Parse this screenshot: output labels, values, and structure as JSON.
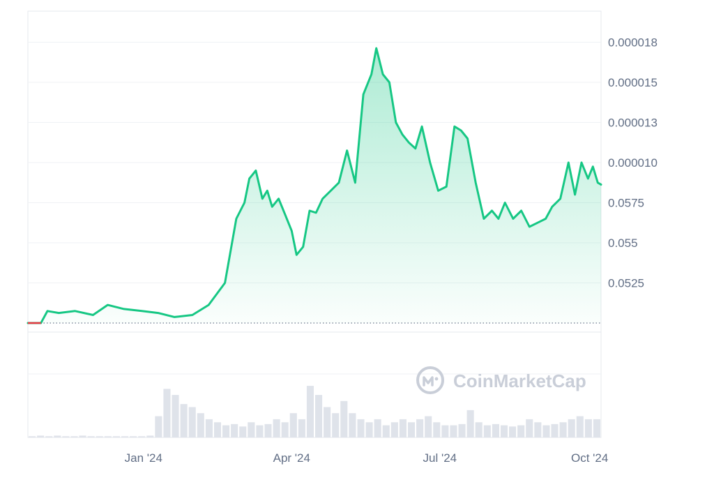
{
  "watermark": {
    "text": "CoinMarketCap",
    "icon": "coinmarketcap-logo-icon"
  },
  "colors": {
    "line": "#16c784",
    "fill_top": "#16c784",
    "grid": "#eff2f5",
    "axis_text": "#616e85",
    "baseline_dots": "#808a9d",
    "start_segment": "#ea3943",
    "volume": "#dfe3ea"
  },
  "chart_data": {
    "type": "area",
    "title": "",
    "xlabel": "",
    "ylabel": "",
    "x_ticks": [
      "Jan '24",
      "Apr '24",
      "Jul '24",
      "Oct '24"
    ],
    "y_ticks": [
      "0.0525",
      "0.055",
      "0.0575",
      "0.000010",
      "0.000013",
      "0.000015",
      "0.000018"
    ],
    "grid": true,
    "baseline_dotted": true,
    "series": [
      {
        "type": "area",
        "axis_note": "values in units of the tick index scale (0 = baseline, 1..7 = labeled gridlines bottom to top)",
        "x_range": [
          "2023-10-22",
          "2024-10-08"
        ],
        "x": [
          "2023-10-22",
          "2023-10-30",
          "2023-11-03",
          "2023-11-10",
          "2023-11-20",
          "2023-12-01",
          "2023-12-10",
          "2023-12-20",
          "2023-12-31",
          "2024-01-10",
          "2024-01-20",
          "2024-01-31",
          "2024-02-10",
          "2024-02-20",
          "2024-02-27",
          "2024-03-03",
          "2024-03-06",
          "2024-03-10",
          "2024-03-14",
          "2024-03-17",
          "2024-03-20",
          "2024-03-24",
          "2024-03-28",
          "2024-04-01",
          "2024-04-04",
          "2024-04-08",
          "2024-04-12",
          "2024-04-16",
          "2024-04-20",
          "2024-04-25",
          "2024-04-30",
          "2024-05-05",
          "2024-05-10",
          "2024-05-15",
          "2024-05-20",
          "2024-05-23",
          "2024-05-27",
          "2024-05-31",
          "2024-06-04",
          "2024-06-08",
          "2024-06-12",
          "2024-06-16",
          "2024-06-20",
          "2024-06-25",
          "2024-06-30",
          "2024-07-05",
          "2024-07-10",
          "2024-07-14",
          "2024-07-18",
          "2024-07-23",
          "2024-07-28",
          "2024-08-02",
          "2024-08-06",
          "2024-08-10",
          "2024-08-15",
          "2024-08-20",
          "2024-08-25",
          "2024-08-30",
          "2024-09-04",
          "2024-09-08",
          "2024-09-13",
          "2024-09-18",
          "2024-09-22",
          "2024-09-26",
          "2024-09-30",
          "2024-10-03",
          "2024-10-06",
          "2024-10-08"
        ],
        "values": [
          0.0,
          0.0,
          0.3,
          0.25,
          0.3,
          0.2,
          0.45,
          0.35,
          0.3,
          0.25,
          0.15,
          0.2,
          0.45,
          1.0,
          2.6,
          3.0,
          3.6,
          3.8,
          3.1,
          3.3,
          2.9,
          3.1,
          2.7,
          2.3,
          1.7,
          1.9,
          2.8,
          2.75,
          3.1,
          3.3,
          3.5,
          4.3,
          3.5,
          5.7,
          6.2,
          6.85,
          6.2,
          6.0,
          5.0,
          4.7,
          4.5,
          4.35,
          4.9,
          4.0,
          3.3,
          3.4,
          4.9,
          4.8,
          4.6,
          3.5,
          2.6,
          2.8,
          2.6,
          3.0,
          2.6,
          2.8,
          2.4,
          2.5,
          2.6,
          2.9,
          3.1,
          4.0,
          3.2,
          4.0,
          3.6,
          3.9,
          3.5,
          3.45
        ]
      },
      {
        "type": "bar",
        "axis_note": "relative trading volume (0-1) per period",
        "values": [
          0.02,
          0.03,
          0.02,
          0.03,
          0.02,
          0.02,
          0.03,
          0.02,
          0.02,
          0.02,
          0.02,
          0.02,
          0.02,
          0.02,
          0.03,
          0.35,
          0.8,
          0.7,
          0.55,
          0.5,
          0.4,
          0.3,
          0.25,
          0.2,
          0.22,
          0.18,
          0.25,
          0.2,
          0.22,
          0.3,
          0.25,
          0.4,
          0.3,
          0.85,
          0.7,
          0.5,
          0.4,
          0.6,
          0.4,
          0.3,
          0.25,
          0.3,
          0.2,
          0.25,
          0.3,
          0.25,
          0.3,
          0.35,
          0.25,
          0.2,
          0.2,
          0.22,
          0.45,
          0.25,
          0.2,
          0.22,
          0.2,
          0.18,
          0.2,
          0.3,
          0.25,
          0.2,
          0.22,
          0.25,
          0.3,
          0.35,
          0.3,
          0.3
        ]
      }
    ]
  }
}
